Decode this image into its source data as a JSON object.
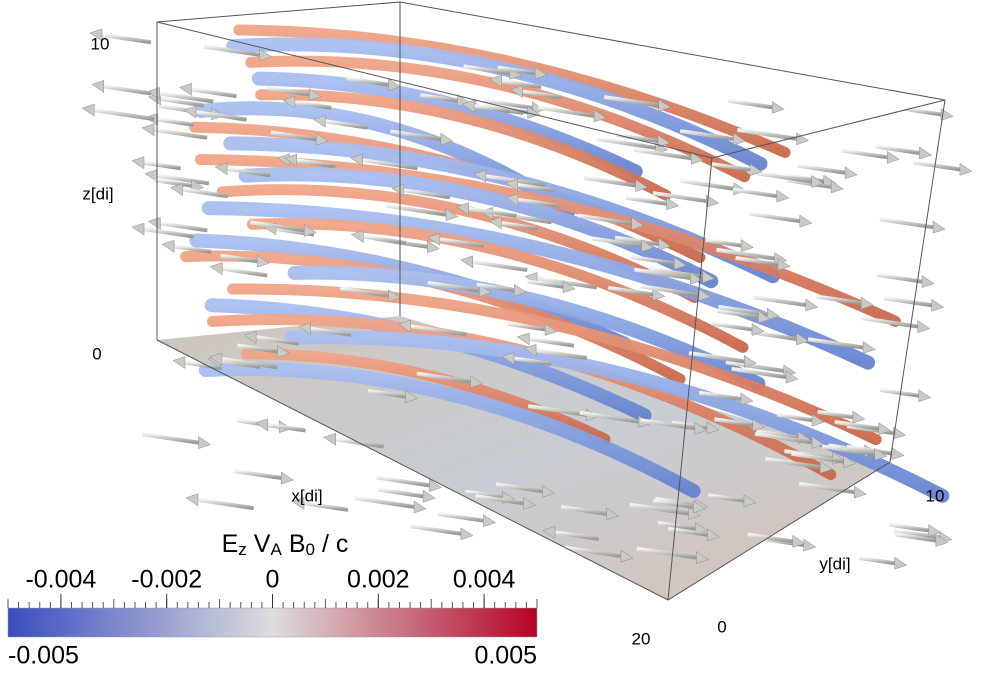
{
  "axes": {
    "z": {
      "label": "z[di]",
      "ticks": [
        "10",
        "0"
      ]
    },
    "x": {
      "label": "x[di]",
      "ticks": [
        "20"
      ]
    },
    "y": {
      "label": "y[di]",
      "ticks": [
        "0",
        "10"
      ]
    }
  },
  "colorbar": {
    "title": [
      "E",
      "z",
      "V",
      "A",
      "B",
      "0",
      "/ c"
    ],
    "range": [
      -0.005,
      0.005
    ],
    "ticks": [
      -0.004,
      -0.002,
      0,
      0.002,
      0.004
    ],
    "colors": [
      "#3b4cc0",
      "#dddddd",
      "#b40426"
    ]
  }
}
